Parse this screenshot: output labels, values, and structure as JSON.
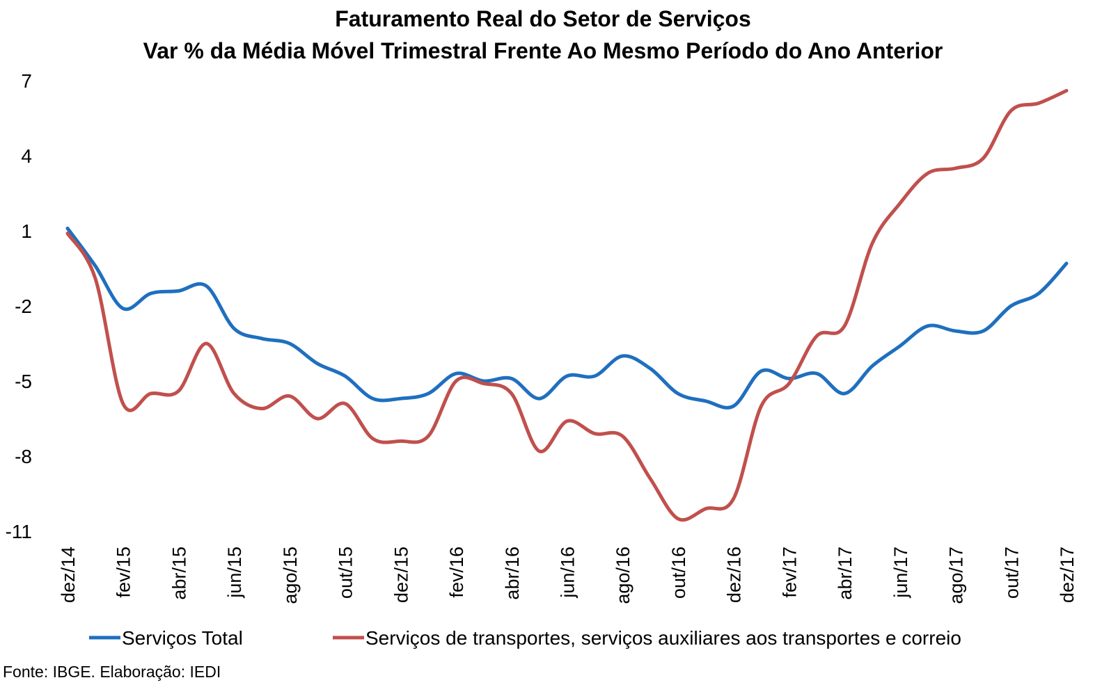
{
  "chart_data": {
    "type": "line",
    "title": "Faturamento Real do Setor de Serviços",
    "subtitle": "Var % da Média Móvel Trimestral Frente Ao Mesmo Período do Ano Anterior",
    "xlabel": "",
    "ylabel": "",
    "ylim": [
      -11,
      7
    ],
    "yticks": [
      "7",
      "4",
      "1",
      "-2",
      "-5",
      "-8",
      "-11"
    ],
    "ytick_values": [
      7,
      4,
      1,
      -2,
      -5,
      -8,
      -11
    ],
    "x": [
      "dez/14",
      "jan/15",
      "fev/15",
      "mar/15",
      "abr/15",
      "mai/15",
      "jun/15",
      "jul/15",
      "ago/15",
      "set/15",
      "out/15",
      "nov/15",
      "dez/15",
      "jan/16",
      "fev/16",
      "mar/16",
      "abr/16",
      "mai/16",
      "jun/16",
      "jul/16",
      "ago/16",
      "set/16",
      "out/16",
      "nov/16",
      "dez/16",
      "jan/17",
      "fev/17",
      "mar/17",
      "abr/17",
      "mai/17",
      "jun/17",
      "jul/17",
      "ago/17",
      "set/17",
      "out/17",
      "nov/17",
      "dez/17"
    ],
    "xtick_labels": [
      "dez/14",
      "fev/15",
      "abr/15",
      "jun/15",
      "ago/15",
      "out/15",
      "dez/15",
      "fev/16",
      "abr/16",
      "jun/16",
      "ago/16",
      "out/16",
      "dez/16",
      "fev/17",
      "abr/17",
      "jun/17",
      "ago/17",
      "out/17",
      "dez/17"
    ],
    "series": [
      {
        "name": "Serviços Total",
        "color": "#1F6FBF",
        "values": [
          1.1,
          -0.4,
          -2.1,
          -1.5,
          -1.4,
          -1.2,
          -2.9,
          -3.3,
          -3.5,
          -4.3,
          -4.8,
          -5.7,
          -5.7,
          -5.5,
          -4.7,
          -5.0,
          -4.9,
          -5.7,
          -4.8,
          -4.8,
          -4.0,
          -4.5,
          -5.5,
          -5.8,
          -6.0,
          -4.6,
          -4.9,
          -4.7,
          -5.5,
          -4.4,
          -3.6,
          -2.8,
          -3.0,
          -3.0,
          -2.0,
          -1.5,
          -0.3
        ]
      },
      {
        "name": "Serviços de transportes, serviços auxiliares aos transportes e correio",
        "color": "#C0504D",
        "values": [
          0.9,
          -0.9,
          -5.9,
          -5.5,
          -5.4,
          -3.5,
          -5.5,
          -6.1,
          -5.6,
          -6.5,
          -5.9,
          -7.3,
          -7.4,
          -7.2,
          -5.0,
          -5.1,
          -5.5,
          -7.8,
          -6.6,
          -7.1,
          -7.2,
          -8.9,
          -10.5,
          -10.1,
          -9.7,
          -6.0,
          -5.1,
          -3.2,
          -2.8,
          0.5,
          2.1,
          3.3,
          3.5,
          3.9,
          5.8,
          6.1,
          6.6
        ]
      }
    ],
    "grid": false,
    "legend": "bottom"
  },
  "source": "Fonte: IBGE. Elaboração: IEDI"
}
